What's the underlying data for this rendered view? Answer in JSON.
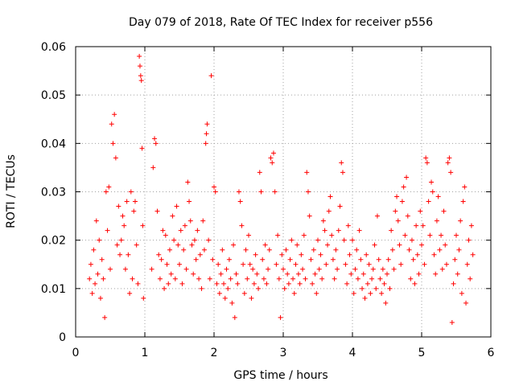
{
  "chart_data": {
    "type": "scatter",
    "title": "Day 079 of 2018, Rate Of TEC Index for receiver p556",
    "xlabel": "GPS time / hours",
    "ylabel": "ROTI / TECUs",
    "xlim": [
      0,
      6
    ],
    "ylim": [
      0,
      0.06
    ],
    "xticks": [
      0,
      1,
      2,
      3,
      4,
      5,
      6
    ],
    "xtick_labels": [
      "0",
      "1",
      "2",
      "3",
      "4",
      "5",
      "6"
    ],
    "yticks": [
      0,
      0.01,
      0.02,
      0.03,
      0.04,
      0.05,
      0.06
    ],
    "ytick_labels": [
      "0",
      "0.01",
      "0.02",
      "0.03",
      "0.04",
      "0.05",
      "0.06"
    ],
    "grid": true,
    "marker": "+",
    "color": "#ff0000",
    "series": [
      {
        "name": "ROTI",
        "points": [
          [
            0.2,
            0.012
          ],
          [
            0.22,
            0.015
          ],
          [
            0.24,
            0.009
          ],
          [
            0.26,
            0.018
          ],
          [
            0.28,
            0.011
          ],
          [
            0.3,
            0.024
          ],
          [
            0.32,
            0.013
          ],
          [
            0.34,
            0.02
          ],
          [
            0.36,
            0.008
          ],
          [
            0.38,
            0.016
          ],
          [
            0.4,
            0.012
          ],
          [
            0.42,
            0.004
          ],
          [
            0.44,
            0.03
          ],
          [
            0.46,
            0.022
          ],
          [
            0.48,
            0.031
          ],
          [
            0.5,
            0.014
          ],
          [
            0.52,
            0.044
          ],
          [
            0.54,
            0.04
          ],
          [
            0.56,
            0.046
          ],
          [
            0.58,
            0.037
          ],
          [
            0.6,
            0.019
          ],
          [
            0.62,
            0.027
          ],
          [
            0.64,
            0.017
          ],
          [
            0.66,
            0.02
          ],
          [
            0.68,
            0.025
          ],
          [
            0.7,
            0.023
          ],
          [
            0.72,
            0.014
          ],
          [
            0.74,
            0.028
          ],
          [
            0.76,
            0.017
          ],
          [
            0.78,
            0.009
          ],
          [
            0.8,
            0.03
          ],
          [
            0.82,
            0.012
          ],
          [
            0.84,
            0.026
          ],
          [
            0.86,
            0.028
          ],
          [
            0.88,
            0.019
          ],
          [
            0.9,
            0.011
          ],
          [
            0.92,
            0.058
          ],
          [
            0.93,
            0.056
          ],
          [
            0.94,
            0.054
          ],
          [
            0.95,
            0.053
          ],
          [
            0.96,
            0.039
          ],
          [
            0.97,
            0.023
          ],
          [
            0.98,
            0.008
          ],
          [
            1.1,
            0.014
          ],
          [
            1.12,
            0.035
          ],
          [
            1.14,
            0.041
          ],
          [
            1.16,
            0.04
          ],
          [
            1.18,
            0.026
          ],
          [
            1.2,
            0.017
          ],
          [
            1.22,
            0.012
          ],
          [
            1.24,
            0.016
          ],
          [
            1.26,
            0.022
          ],
          [
            1.28,
            0.01
          ],
          [
            1.3,
            0.021
          ],
          [
            1.32,
            0.015
          ],
          [
            1.34,
            0.011
          ],
          [
            1.36,
            0.018
          ],
          [
            1.38,
            0.013
          ],
          [
            1.4,
            0.025
          ],
          [
            1.42,
            0.02
          ],
          [
            1.44,
            0.012
          ],
          [
            1.46,
            0.027
          ],
          [
            1.48,
            0.019
          ],
          [
            1.5,
            0.015
          ],
          [
            1.52,
            0.022
          ],
          [
            1.54,
            0.011
          ],
          [
            1.56,
            0.018
          ],
          [
            1.58,
            0.023
          ],
          [
            1.6,
            0.014
          ],
          [
            1.62,
            0.032
          ],
          [
            1.64,
            0.028
          ],
          [
            1.66,
            0.024
          ],
          [
            1.68,
            0.019
          ],
          [
            1.7,
            0.013
          ],
          [
            1.72,
            0.02
          ],
          [
            1.74,
            0.016
          ],
          [
            1.76,
            0.022
          ],
          [
            1.78,
            0.012
          ],
          [
            1.8,
            0.017
          ],
          [
            1.82,
            0.01
          ],
          [
            1.84,
            0.024
          ],
          [
            1.86,
            0.018
          ],
          [
            1.88,
            0.04
          ],
          [
            1.89,
            0.042
          ],
          [
            1.9,
            0.044
          ],
          [
            1.92,
            0.02
          ],
          [
            1.94,
            0.012
          ],
          [
            1.96,
            0.054
          ],
          [
            1.98,
            0.016
          ],
          [
            2.0,
            0.031
          ],
          [
            2.02,
            0.03
          ],
          [
            2.04,
            0.011
          ],
          [
            2.06,
            0.015
          ],
          [
            2.08,
            0.009
          ],
          [
            2.1,
            0.013
          ],
          [
            2.12,
            0.018
          ],
          [
            2.14,
            0.011
          ],
          [
            2.16,
            0.008
          ],
          [
            2.18,
            0.014
          ],
          [
            2.2,
            0.01
          ],
          [
            2.22,
            0.016
          ],
          [
            2.24,
            0.012
          ],
          [
            2.26,
            0.007
          ],
          [
            2.28,
            0.019
          ],
          [
            2.3,
            0.004
          ],
          [
            2.32,
            0.013
          ],
          [
            2.34,
            0.011
          ],
          [
            2.36,
            0.03
          ],
          [
            2.38,
            0.028
          ],
          [
            2.4,
            0.023
          ],
          [
            2.42,
            0.015
          ],
          [
            2.44,
            0.009
          ],
          [
            2.46,
            0.018
          ],
          [
            2.48,
            0.012
          ],
          [
            2.5,
            0.021
          ],
          [
            2.52,
            0.015
          ],
          [
            2.54,
            0.008
          ],
          [
            2.56,
            0.014
          ],
          [
            2.58,
            0.011
          ],
          [
            2.6,
            0.017
          ],
          [
            2.62,
            0.013
          ],
          [
            2.64,
            0.01
          ],
          [
            2.66,
            0.034
          ],
          [
            2.68,
            0.03
          ],
          [
            2.7,
            0.016
          ],
          [
            2.72,
            0.012
          ],
          [
            2.74,
            0.019
          ],
          [
            2.76,
            0.011
          ],
          [
            2.78,
            0.014
          ],
          [
            2.8,
            0.018
          ],
          [
            2.82,
            0.037
          ],
          [
            2.84,
            0.036
          ],
          [
            2.86,
            0.038
          ],
          [
            2.88,
            0.03
          ],
          [
            2.9,
            0.015
          ],
          [
            2.92,
            0.021
          ],
          [
            2.94,
            0.012
          ],
          [
            2.96,
            0.004
          ],
          [
            2.98,
            0.017
          ],
          [
            3.0,
            0.014
          ],
          [
            3.02,
            0.01
          ],
          [
            3.04,
            0.018
          ],
          [
            3.06,
            0.013
          ],
          [
            3.08,
            0.011
          ],
          [
            3.1,
            0.016
          ],
          [
            3.12,
            0.02
          ],
          [
            3.14,
            0.012
          ],
          [
            3.16,
            0.009
          ],
          [
            3.18,
            0.015
          ],
          [
            3.2,
            0.019
          ],
          [
            3.22,
            0.013
          ],
          [
            3.24,
            0.011
          ],
          [
            3.26,
            0.017
          ],
          [
            3.28,
            0.014
          ],
          [
            3.3,
            0.021
          ],
          [
            3.32,
            0.012
          ],
          [
            3.34,
            0.034
          ],
          [
            3.36,
            0.03
          ],
          [
            3.38,
            0.025
          ],
          [
            3.4,
            0.016
          ],
          [
            3.42,
            0.011
          ],
          [
            3.44,
            0.018
          ],
          [
            3.46,
            0.013
          ],
          [
            3.48,
            0.009
          ],
          [
            3.5,
            0.02
          ],
          [
            3.52,
            0.014
          ],
          [
            3.54,
            0.017
          ],
          [
            3.56,
            0.012
          ],
          [
            3.58,
            0.024
          ],
          [
            3.6,
            0.022
          ],
          [
            3.62,
            0.015
          ],
          [
            3.64,
            0.019
          ],
          [
            3.66,
            0.026
          ],
          [
            3.68,
            0.029
          ],
          [
            3.7,
            0.021
          ],
          [
            3.72,
            0.016
          ],
          [
            3.74,
            0.012
          ],
          [
            3.76,
            0.018
          ],
          [
            3.78,
            0.014
          ],
          [
            3.8,
            0.022
          ],
          [
            3.82,
            0.027
          ],
          [
            3.84,
            0.036
          ],
          [
            3.86,
            0.034
          ],
          [
            3.88,
            0.02
          ],
          [
            3.9,
            0.015
          ],
          [
            3.92,
            0.011
          ],
          [
            3.94,
            0.023
          ],
          [
            3.96,
            0.017
          ],
          [
            3.98,
            0.013
          ],
          [
            4.0,
            0.02
          ],
          [
            4.02,
            0.009
          ],
          [
            4.04,
            0.014
          ],
          [
            4.06,
            0.018
          ],
          [
            4.08,
            0.012
          ],
          [
            4.1,
            0.022
          ],
          [
            4.12,
            0.016
          ],
          [
            4.14,
            0.01
          ],
          [
            4.16,
            0.013
          ],
          [
            4.18,
            0.008
          ],
          [
            4.2,
            0.017
          ],
          [
            4.22,
            0.011
          ],
          [
            4.24,
            0.015
          ],
          [
            4.26,
            0.009
          ],
          [
            4.28,
            0.012
          ],
          [
            4.3,
            0.014
          ],
          [
            4.32,
            0.019
          ],
          [
            4.34,
            0.01
          ],
          [
            4.36,
            0.025
          ],
          [
            4.38,
            0.016
          ],
          [
            4.4,
            0.012
          ],
          [
            4.42,
            0.009
          ],
          [
            4.44,
            0.014
          ],
          [
            4.46,
            0.011
          ],
          [
            4.48,
            0.007
          ],
          [
            4.5,
            0.013
          ],
          [
            4.52,
            0.016
          ],
          [
            4.54,
            0.01
          ],
          [
            4.56,
            0.022
          ],
          [
            4.58,
            0.018
          ],
          [
            4.6,
            0.014
          ],
          [
            4.62,
            0.026
          ],
          [
            4.64,
            0.029
          ],
          [
            4.66,
            0.024
          ],
          [
            4.68,
            0.019
          ],
          [
            4.7,
            0.015
          ],
          [
            4.72,
            0.028
          ],
          [
            4.74,
            0.031
          ],
          [
            4.76,
            0.021
          ],
          [
            4.78,
            0.033
          ],
          [
            4.8,
            0.025
          ],
          [
            4.82,
            0.018
          ],
          [
            4.84,
            0.012
          ],
          [
            4.86,
            0.02
          ],
          [
            4.88,
            0.016
          ],
          [
            4.9,
            0.011
          ],
          [
            4.92,
            0.023
          ],
          [
            4.94,
            0.017
          ],
          [
            4.96,
            0.013
          ],
          [
            4.98,
            0.026
          ],
          [
            5.0,
            0.019
          ],
          [
            5.02,
            0.023
          ],
          [
            5.04,
            0.015
          ],
          [
            5.06,
            0.037
          ],
          [
            5.08,
            0.036
          ],
          [
            5.1,
            0.028
          ],
          [
            5.12,
            0.021
          ],
          [
            5.14,
            0.032
          ],
          [
            5.16,
            0.03
          ],
          [
            5.18,
            0.017
          ],
          [
            5.2,
            0.013
          ],
          [
            5.22,
            0.024
          ],
          [
            5.24,
            0.029
          ],
          [
            5.26,
            0.018
          ],
          [
            5.28,
            0.021
          ],
          [
            5.3,
            0.014
          ],
          [
            5.32,
            0.026
          ],
          [
            5.34,
            0.019
          ],
          [
            5.36,
            0.015
          ],
          [
            5.38,
            0.036
          ],
          [
            5.4,
            0.037
          ],
          [
            5.42,
            0.034
          ],
          [
            5.44,
            0.003
          ],
          [
            5.46,
            0.011
          ],
          [
            5.48,
            0.016
          ],
          [
            5.5,
            0.021
          ],
          [
            5.52,
            0.013
          ],
          [
            5.54,
            0.018
          ],
          [
            5.56,
            0.024
          ],
          [
            5.58,
            0.009
          ],
          [
            5.6,
            0.028
          ],
          [
            5.62,
            0.031
          ],
          [
            5.64,
            0.007
          ],
          [
            5.66,
            0.015
          ],
          [
            5.68,
            0.02
          ],
          [
            5.7,
            0.012
          ],
          [
            5.72,
            0.023
          ],
          [
            5.74,
            0.017
          ]
        ]
      }
    ]
  }
}
